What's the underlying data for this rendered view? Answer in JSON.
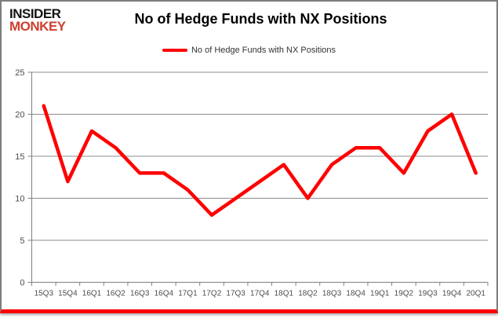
{
  "logo": {
    "line1": "INSIDER",
    "line2": "MONKEY"
  },
  "header": {
    "title": "No of Hedge Funds with NX Positions"
  },
  "legend": {
    "label": "No of Hedge Funds with NX Positions"
  },
  "colors": {
    "line": "#ff0000",
    "logo_accent": "#ce3f2f",
    "grid": "#8c8c8c",
    "axis": "#808080",
    "axis_text": "#4d4d4d",
    "bottom_bar": "#ff0000"
  },
  "chart_data": {
    "type": "line",
    "title": "No of Hedge Funds with NX Positions",
    "categories": [
      "15Q3",
      "15Q4",
      "16Q1",
      "16Q2",
      "16Q3",
      "16Q4",
      "17Q1",
      "17Q2",
      "17Q3",
      "17Q4",
      "18Q1",
      "18Q2",
      "18Q3",
      "18Q4",
      "19Q1",
      "19Q2",
      "19Q3",
      "19Q4",
      "20Q1"
    ],
    "series": [
      {
        "name": "No of Hedge Funds with NX Positions",
        "color": "#ff0000",
        "values": [
          21,
          12,
          18,
          16,
          13,
          13,
          11,
          8,
          10,
          12,
          14,
          10,
          14,
          16,
          16,
          13,
          18,
          20,
          13
        ]
      }
    ],
    "xlabel": "",
    "ylabel": "",
    "ylim": [
      0,
      25
    ],
    "yticks": [
      0,
      5,
      10,
      15,
      20,
      25
    ],
    "grid": true,
    "legend_position": "top-center"
  }
}
